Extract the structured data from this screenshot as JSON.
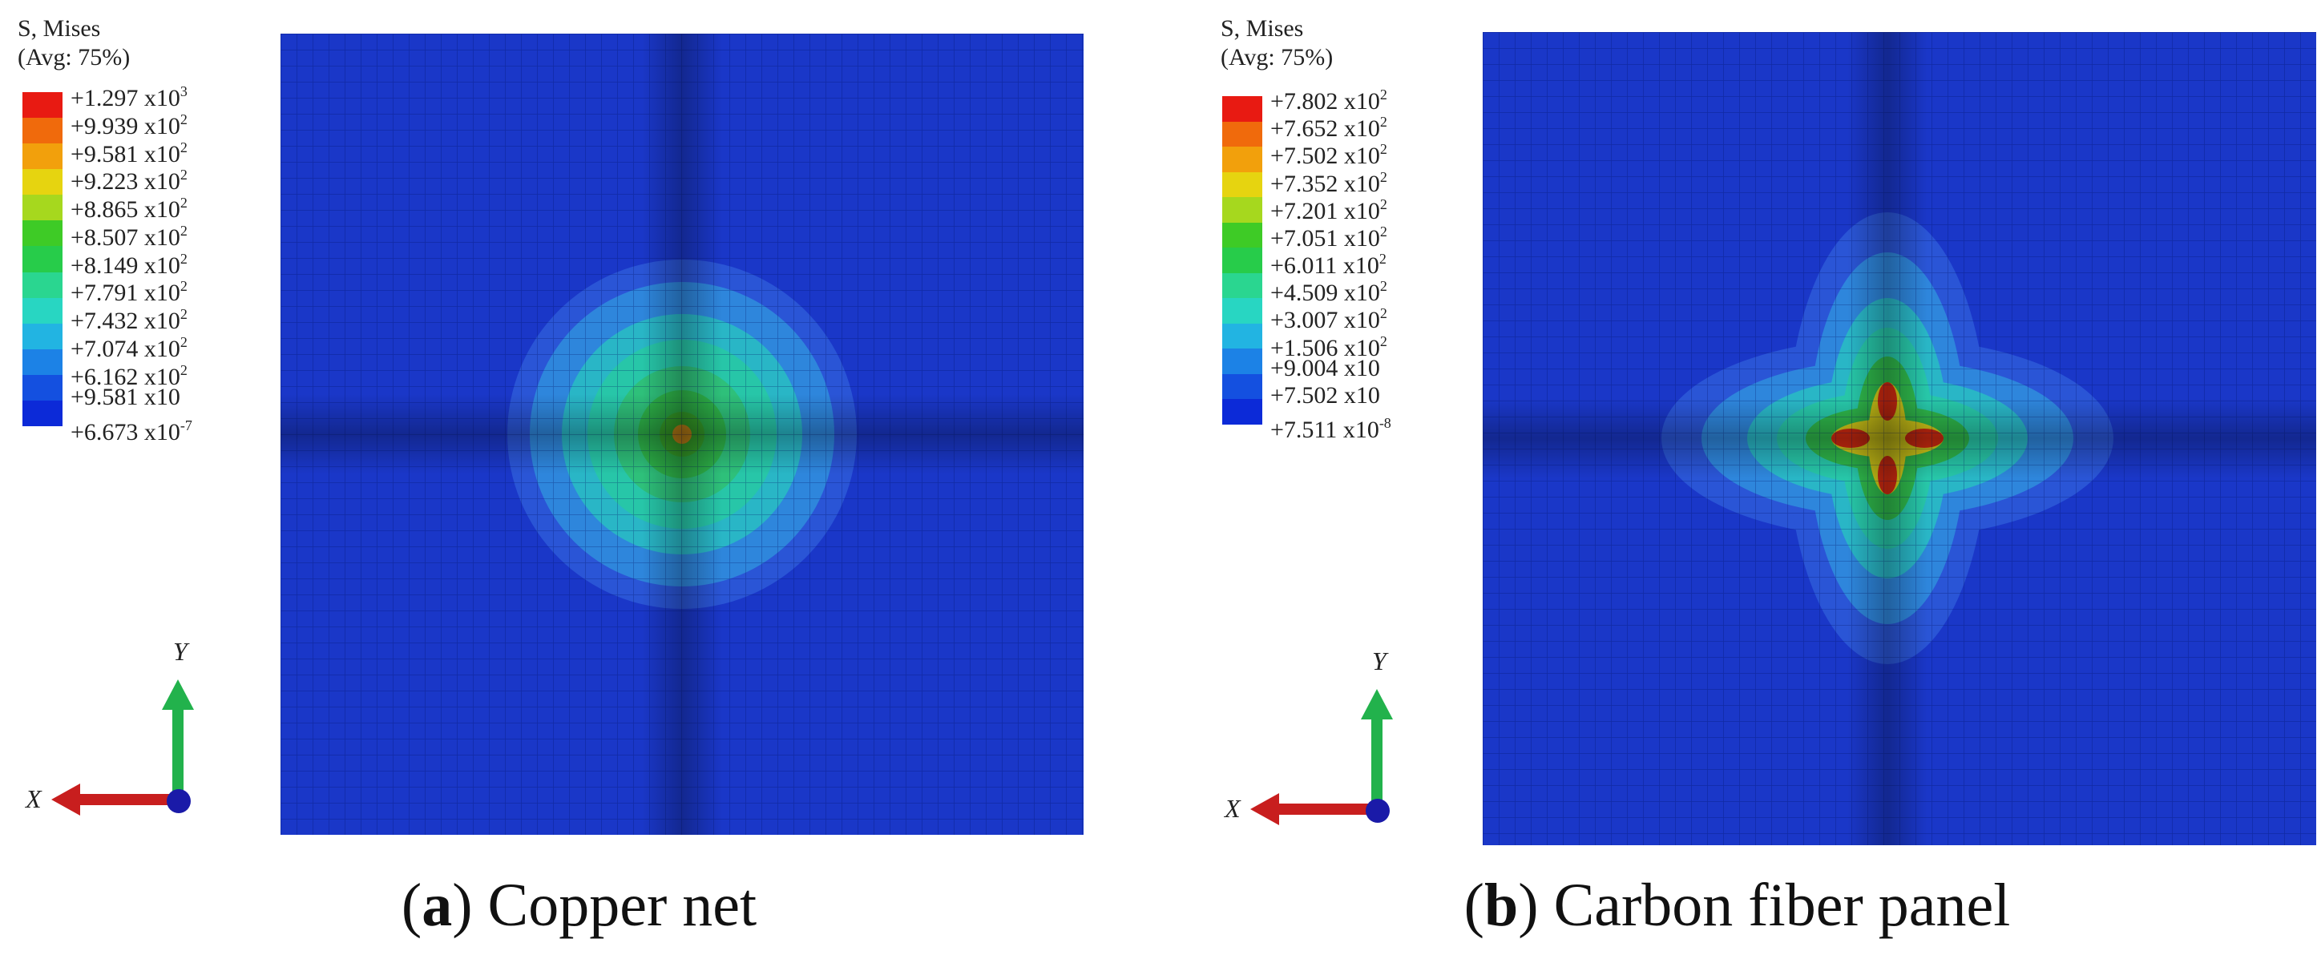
{
  "colors": {
    "background_mesh": "#1a37c8",
    "contour_scale": [
      "#0c2ad8",
      "#1450e0",
      "#1c82e6",
      "#22b4e2",
      "#28d6c2",
      "#2ad690",
      "#27cc4a",
      "#3ecb26",
      "#a6d81e",
      "#e6d410",
      "#f2a00c",
      "#f06a0c",
      "#e81a12"
    ]
  },
  "panels": [
    {
      "id": "a",
      "legend": {
        "title_line1": "S, Mises",
        "title_line2": "(Avg: 75%)",
        "labels": [
          {
            "value": "+1.297",
            "exp": "x10",
            "sup": "3"
          },
          {
            "value": "+9.939",
            "exp": "x10",
            "sup": "2"
          },
          {
            "value": "+9.581",
            "exp": "x10",
            "sup": "2"
          },
          {
            "value": "+9.223",
            "exp": "x10",
            "sup": "2"
          },
          {
            "value": "+8.865",
            "exp": "x10",
            "sup": "2"
          },
          {
            "value": "+8.507",
            "exp": "x10",
            "sup": "2"
          },
          {
            "value": "+8.149",
            "exp": "x10",
            "sup": "2"
          },
          {
            "value": "+7.791",
            "exp": "x10",
            "sup": "2"
          },
          {
            "value": "+7.432",
            "exp": "x10",
            "sup": "2"
          },
          {
            "value": "+7.074",
            "exp": "x10",
            "sup": "2"
          },
          {
            "value": "+6.162",
            "exp": "x10",
            "sup": "2"
          },
          {
            "value": "+9.581",
            "exp": "x10",
            "sup": ""
          },
          {
            "value": "+6.673",
            "exp": "x10",
            "sup": "-7"
          }
        ]
      },
      "triad": {
        "x_label": "X",
        "y_label": "Y"
      },
      "caption": {
        "letter": "a",
        "text": "Copper net"
      }
    },
    {
      "id": "b",
      "legend": {
        "title_line1": "S, Mises",
        "title_line2": "(Avg: 75%)",
        "labels": [
          {
            "value": "+7.802",
            "exp": "x10",
            "sup": "2"
          },
          {
            "value": "+7.652",
            "exp": "x10",
            "sup": "2"
          },
          {
            "value": "+7.502",
            "exp": "x10",
            "sup": "2"
          },
          {
            "value": "+7.352",
            "exp": "x10",
            "sup": "2"
          },
          {
            "value": "+7.201",
            "exp": "x10",
            "sup": "2"
          },
          {
            "value": "+7.051",
            "exp": "x10",
            "sup": "2"
          },
          {
            "value": "+6.011",
            "exp": "x10",
            "sup": "2"
          },
          {
            "value": "+4.509",
            "exp": "x10",
            "sup": "2"
          },
          {
            "value": "+3.007",
            "exp": "x10",
            "sup": "2"
          },
          {
            "value": "+1.506",
            "exp": "x10",
            "sup": "2"
          },
          {
            "value": "+9.004",
            "exp": "x10",
            "sup": ""
          },
          {
            "value": "+7.502",
            "exp": "x10",
            "sup": ""
          },
          {
            "value": "+7.511",
            "exp": "x10",
            "sup": "-8"
          }
        ]
      },
      "triad": {
        "x_label": "X",
        "y_label": "Y"
      },
      "caption": {
        "letter": "b",
        "text": "Carbon fiber panel"
      }
    }
  ]
}
